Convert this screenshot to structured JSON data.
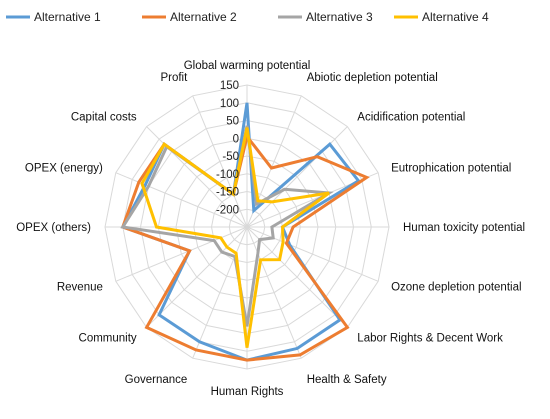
{
  "chart_data": {
    "type": "radar",
    "title": "",
    "axes": [
      "Global warming potential",
      "Abiotic depletion potential",
      "Acidification potential",
      "Eutrophication potential",
      "Human toxicity potential",
      "Ozone depletion potential",
      "Labor Rights & Decent Work",
      "Health & Safety",
      "Human Rights",
      "Governance",
      "Community",
      "Revenue",
      "OPEX (others)",
      "OPEX (energy)",
      "Capital costs",
      "Profit"
    ],
    "ticks": [
      150,
      100,
      50,
      0,
      -50,
      -100,
      -150,
      -200
    ],
    "rlim": [
      -250,
      150
    ],
    "grid": true,
    "legend_position": "top",
    "series": [
      {
        "name": "Alternative 1",
        "color": "#5B9BD5",
        "values": [
          100,
          -200,
          80,
          90,
          -150,
          -120,
          120,
          120,
          125,
          100,
          100,
          -75,
          100,
          60,
          80,
          -150
        ]
      },
      {
        "name": "Alternative 2",
        "color": "#ED7D31",
        "values": [
          5,
          -70,
          30,
          115,
          -120,
          -130,
          150,
          140,
          125,
          125,
          150,
          -75,
          100,
          80,
          80,
          -150
        ]
      },
      {
        "name": "Alternative 3",
        "color": "#A5A5A5",
        "values": [
          35,
          -180,
          -100,
          0,
          -180,
          -170,
          -200,
          -170,
          30,
          -160,
          -150,
          -150,
          100,
          50,
          70,
          -150
        ]
      },
      {
        "name": "Alternative 4",
        "color": "#FFC000",
        "values": [
          30,
          -170,
          -150,
          0,
          -150,
          -140,
          -120,
          -150,
          90,
          -170,
          -170,
          -170,
          5,
          70,
          80,
          -150
        ]
      }
    ]
  }
}
